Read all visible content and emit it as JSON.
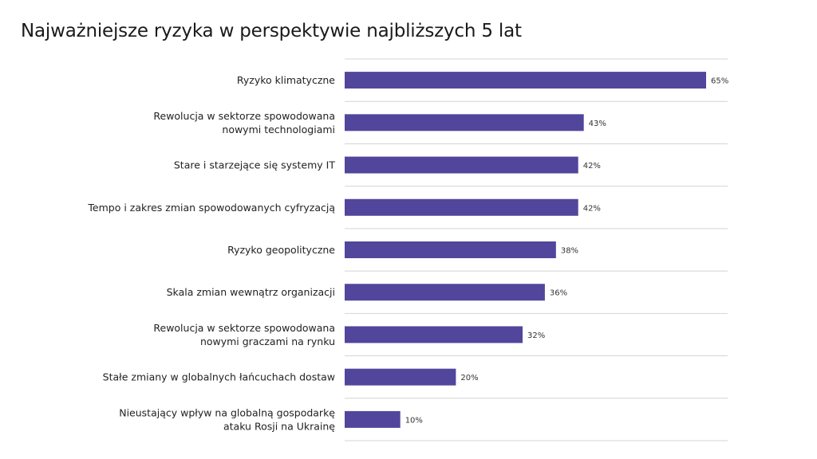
{
  "chart_data": {
    "type": "bar",
    "orientation": "horizontal",
    "title": "Najważniejsze ryzyka w perspektywie najbliższych 5 lat",
    "categories": [
      [
        "Ryzyko klimatyczne"
      ],
      [
        "Rewolucja w sektorze spowodowana",
        "nowymi technologiami"
      ],
      [
        "Stare i starzejące się systemy IT"
      ],
      [
        "Tempo i zakres zmian spowodowanych cyfryzacją"
      ],
      [
        "Ryzyko geopolityczne"
      ],
      [
        "Skala zmian wewnątrz organizacji"
      ],
      [
        "Rewolucja w sektorze spowodowana",
        "nowymi graczami na rynku"
      ],
      [
        "Stałe zmiany w globalnych łańcuchach dostaw"
      ],
      [
        "Nieustający wpływ na globalną gospodarkę",
        "ataku Rosji na Ukrainę"
      ]
    ],
    "values": [
      65,
      43,
      42,
      42,
      38,
      36,
      32,
      20,
      10
    ],
    "value_labels": [
      "65%",
      "43%",
      "42%",
      "42%",
      "38%",
      "36%",
      "32%",
      "20%",
      "10%"
    ],
    "unit": "%",
    "bar_color": "#51459c",
    "grid": "horizontal separators",
    "legend": "none"
  }
}
